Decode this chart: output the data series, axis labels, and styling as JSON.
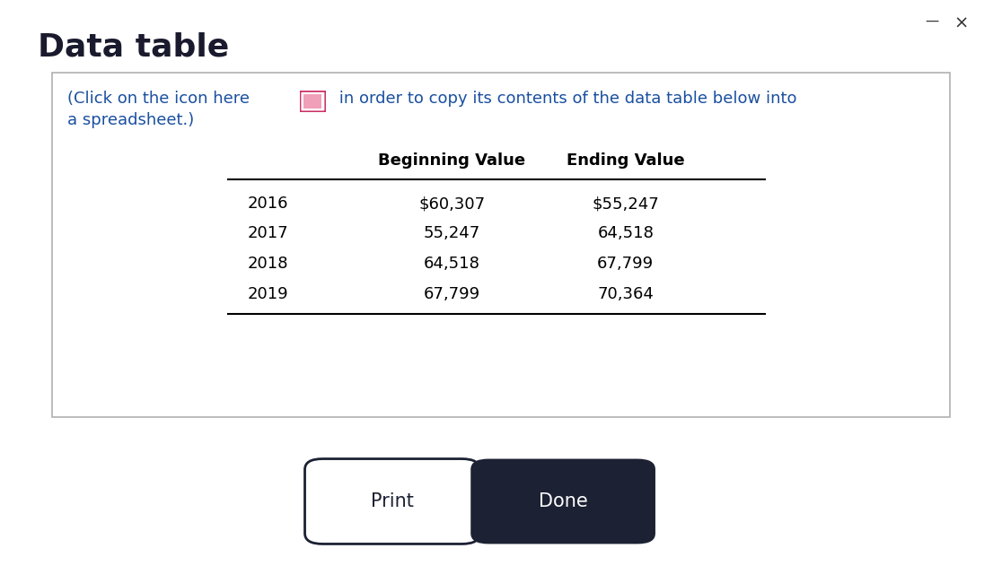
{
  "title": "Data table",
  "title_fontsize": 26,
  "title_color": "#1a1a2e",
  "instruction_color": "#1a4fa0",
  "instruction_fontsize": 13.0,
  "years": [
    "2016",
    "2017",
    "2018",
    "2019"
  ],
  "beginning_values": [
    "$60,307",
    "55,247",
    "64,518",
    "67,799"
  ],
  "ending_values": [
    "$55,247",
    "64,518",
    "67,799",
    "70,364"
  ],
  "col_header_beginning": "Beginning Value",
  "col_header_ending": "Ending Value",
  "header_fontsize": 13.0,
  "data_fontsize": 13.0,
  "background_color": "#ffffff",
  "button_print_text": "Print",
  "button_done_text": "Done",
  "button_done_bg": "#1c2133",
  "button_done_fg": "#ffffff",
  "button_print_bg": "#ffffff",
  "button_print_fg": "#1c2133",
  "icon_border_color": "#cc3366",
  "icon_fill_color": "#f0a0b8",
  "top_bar_color": "#555555"
}
